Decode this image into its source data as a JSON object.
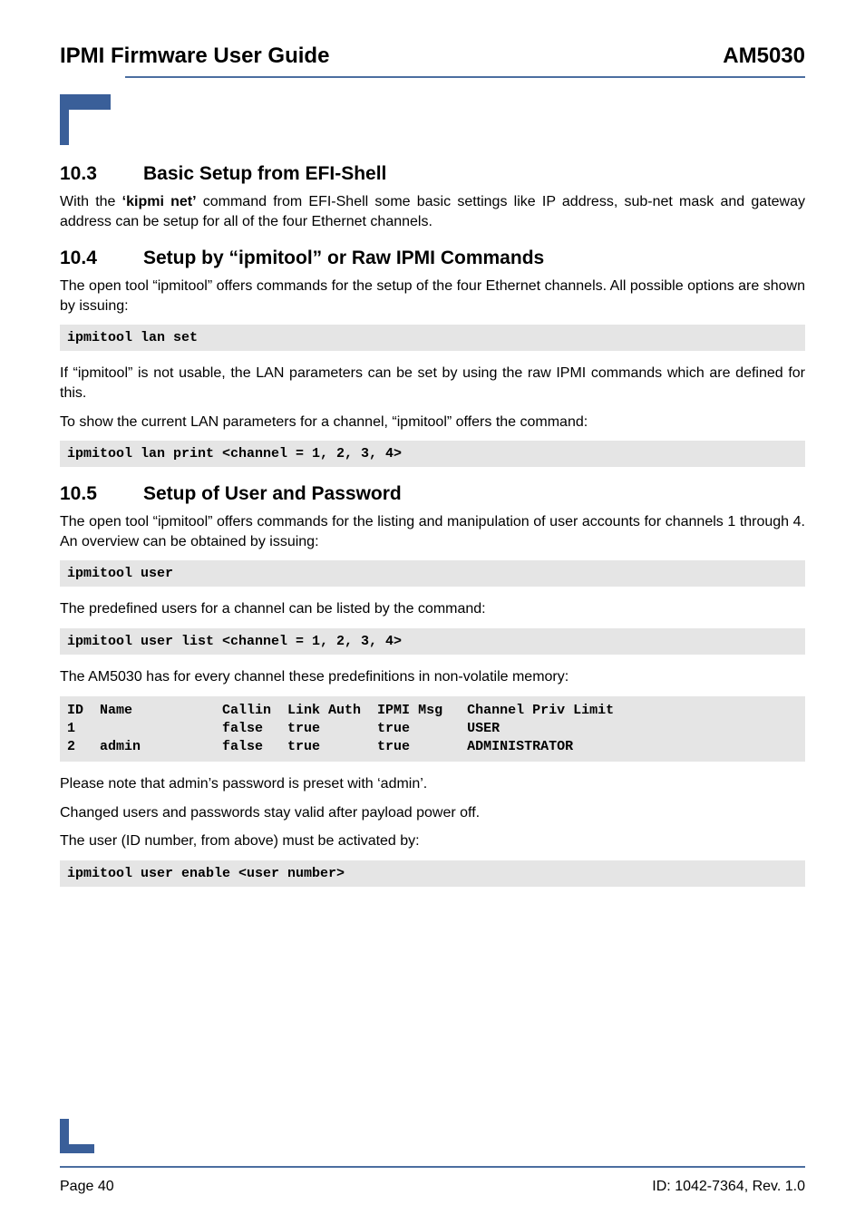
{
  "header": {
    "left": "IPMI Firmware User Guide",
    "right": "AM5030"
  },
  "s103": {
    "num": "10.3",
    "title": "Basic Setup from EFI-Shell",
    "p1a": "With the ",
    "p1b": "‘kipmi net’",
    "p1c": " command from EFI-Shell some basic settings like IP address, sub-net mask and gateway address can be setup for all of the four Ethernet channels."
  },
  "s104": {
    "num": "10.4",
    "title": "Setup by “ipmitool” or Raw IPMI Commands",
    "p1": "The open tool “ipmitool” offers commands for the setup of the four Ethernet channels. All possible options are shown by issuing:",
    "code1": "ipmitool lan set",
    "p2": "If “ipmitool” is not usable, the LAN parameters can be set by using the raw IPMI commands which are defined for this.",
    "p3": "To show the current LAN parameters for a channel, “ipmitool” offers the command:",
    "code2": "ipmitool lan print <channel = 1, 2, 3, 4>"
  },
  "s105": {
    "num": "10.5",
    "title": "Setup of User and Password",
    "p1": "The open tool “ipmitool” offers commands for the listing and manipulation of user accounts for channels 1 through 4. An overview can be obtained by issuing:",
    "code1": "ipmitool user",
    "p2": "The predefined users for a channel can be listed by the command:",
    "code2": "ipmitool user list <channel = 1, 2, 3, 4>",
    "p3": "The AM5030 has for every channel these predefinitions in non-volatile memory:",
    "userlist": "ID  Name           Callin  Link Auth  IPMI Msg   Channel Priv Limit\n1                  false   true       true       USER\n2   admin          false   true       true       ADMINISTRATOR",
    "p4": "Please note that admin’s password is preset with ‘admin’.",
    "p5": "Changed users and passwords stay valid after payload power off.",
    "p6": "The user (ID number, from above) must be activated by:",
    "code3": "ipmitool user enable <user number>"
  },
  "footer": {
    "left": "Page 40",
    "right": "ID: 1042-7364, Rev. 1.0"
  }
}
